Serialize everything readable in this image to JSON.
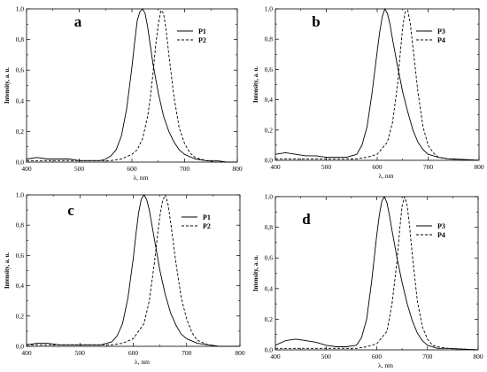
{
  "chart_data": [
    {
      "panel": "a",
      "type": "line",
      "xlabel": "λ, nm",
      "ylabel": "Intensity, a. u.",
      "xlim": [
        400,
        800
      ],
      "ylim": [
        0,
        1.0
      ],
      "xticks": [
        "400",
        "500",
        "600",
        "700",
        "800"
      ],
      "yticks": [
        "0,0",
        "0,2",
        "0,4",
        "0,6",
        "0,8",
        "1,0"
      ],
      "legend_position": "top-right",
      "grid": false,
      "series": [
        {
          "name": "P1",
          "style": "solid",
          "x": [
            400,
            420,
            440,
            460,
            480,
            500,
            520,
            540,
            550,
            560,
            570,
            580,
            590,
            600,
            605,
            610,
            615,
            620,
            625,
            630,
            635,
            640,
            650,
            660,
            670,
            680,
            690,
            700,
            720,
            740,
            760,
            780,
            800
          ],
          "y": [
            0.02,
            0.03,
            0.02,
            0.02,
            0.02,
            0.01,
            0.01,
            0.01,
            0.02,
            0.04,
            0.08,
            0.17,
            0.35,
            0.62,
            0.78,
            0.92,
            0.98,
            1.0,
            0.97,
            0.88,
            0.76,
            0.64,
            0.45,
            0.3,
            0.2,
            0.13,
            0.08,
            0.05,
            0.02,
            0.01,
            0.01,
            0.0,
            0.0
          ]
        },
        {
          "name": "P2",
          "style": "dashed",
          "x": [
            400,
            500,
            560,
            580,
            600,
            610,
            620,
            630,
            635,
            640,
            645,
            650,
            655,
            660,
            665,
            670,
            680,
            690,
            700,
            710,
            720,
            740,
            760,
            800
          ],
          "y": [
            0.01,
            0.01,
            0.01,
            0.02,
            0.05,
            0.08,
            0.15,
            0.3,
            0.42,
            0.58,
            0.76,
            0.9,
            0.99,
            0.97,
            0.86,
            0.7,
            0.42,
            0.22,
            0.12,
            0.06,
            0.03,
            0.01,
            0.0,
            0.0
          ]
        }
      ]
    },
    {
      "panel": "b",
      "type": "line",
      "xlabel": "λ, nm",
      "ylabel": "Intensity, a. u.",
      "xlim": [
        400,
        800
      ],
      "ylim": [
        0,
        1.0
      ],
      "xticks": [
        "400",
        "500",
        "600",
        "700",
        "800"
      ],
      "yticks": [
        "0,0",
        "0,2",
        "0,4",
        "0,6",
        "0,8",
        "1,0"
      ],
      "legend_position": "top-right",
      "grid": false,
      "series": [
        {
          "name": "P3",
          "style": "solid",
          "x": [
            400,
            420,
            440,
            460,
            480,
            500,
            520,
            540,
            560,
            570,
            580,
            590,
            600,
            605,
            610,
            615,
            620,
            625,
            630,
            640,
            650,
            660,
            670,
            680,
            690,
            700,
            720,
            740,
            800
          ],
          "y": [
            0.04,
            0.05,
            0.04,
            0.03,
            0.03,
            0.02,
            0.02,
            0.02,
            0.04,
            0.1,
            0.22,
            0.45,
            0.72,
            0.85,
            0.95,
            1.0,
            0.97,
            0.9,
            0.8,
            0.62,
            0.45,
            0.32,
            0.2,
            0.12,
            0.07,
            0.04,
            0.02,
            0.01,
            0.0
          ]
        },
        {
          "name": "P4",
          "style": "dashed",
          "x": [
            400,
            500,
            560,
            580,
            600,
            620,
            630,
            640,
            645,
            650,
            655,
            660,
            665,
            670,
            680,
            690,
            700,
            710,
            720,
            740,
            800
          ],
          "y": [
            0.01,
            0.01,
            0.01,
            0.02,
            0.04,
            0.12,
            0.25,
            0.5,
            0.7,
            0.88,
            0.98,
            0.99,
            0.9,
            0.75,
            0.45,
            0.22,
            0.1,
            0.05,
            0.02,
            0.01,
            0.0
          ]
        }
      ]
    },
    {
      "panel": "c",
      "type": "line",
      "xlabel": "λ, nm",
      "ylabel": "Intensity, a. u.",
      "xlim": [
        400,
        800
      ],
      "ylim": [
        0,
        1.0
      ],
      "xticks": [
        "400",
        "500",
        "600",
        "700",
        "800"
      ],
      "yticks": [
        "0,0",
        "0,2",
        "0,4",
        "0,6",
        "0,8",
        "1,0"
      ],
      "legend_position": "top-right",
      "grid": false,
      "series": [
        {
          "name": "P1",
          "style": "solid",
          "x": [
            400,
            420,
            440,
            460,
            480,
            500,
            520,
            540,
            560,
            570,
            580,
            590,
            600,
            605,
            610,
            615,
            620,
            625,
            630,
            640,
            650,
            660,
            670,
            680,
            690,
            700,
            720,
            740,
            760,
            800
          ],
          "y": [
            0.01,
            0.02,
            0.02,
            0.01,
            0.01,
            0.01,
            0.01,
            0.01,
            0.03,
            0.07,
            0.15,
            0.32,
            0.58,
            0.74,
            0.88,
            0.97,
            1.0,
            0.97,
            0.9,
            0.7,
            0.5,
            0.34,
            0.22,
            0.14,
            0.08,
            0.05,
            0.02,
            0.01,
            0.0,
            0.0
          ]
        },
        {
          "name": "P2",
          "style": "dashed",
          "x": [
            400,
            500,
            560,
            580,
            600,
            620,
            630,
            640,
            645,
            650,
            655,
            660,
            665,
            670,
            680,
            690,
            700,
            710,
            720,
            740,
            760,
            800
          ],
          "y": [
            0.01,
            0.01,
            0.01,
            0.02,
            0.05,
            0.15,
            0.3,
            0.56,
            0.72,
            0.86,
            0.96,
            1.0,
            0.94,
            0.82,
            0.55,
            0.32,
            0.18,
            0.09,
            0.04,
            0.01,
            0.0,
            0.0
          ]
        }
      ]
    },
    {
      "panel": "d",
      "type": "line",
      "xlabel": "λ, nm",
      "ylabel": "Intensity, a. u.",
      "xlim": [
        400,
        800
      ],
      "ylim": [
        0,
        1.0
      ],
      "xticks": [
        "400",
        "500",
        "600",
        "700",
        "800"
      ],
      "yticks": [
        "0,0",
        "0,2",
        "0,4",
        "0,6",
        "0,8",
        "1,0"
      ],
      "legend_position": "top-right",
      "grid": false,
      "series": [
        {
          "name": "P3",
          "style": "solid",
          "x": [
            400,
            420,
            440,
            460,
            480,
            500,
            520,
            540,
            560,
            570,
            580,
            590,
            600,
            605,
            610,
            615,
            620,
            625,
            630,
            640,
            650,
            660,
            670,
            680,
            690,
            700,
            720,
            740,
            800
          ],
          "y": [
            0.03,
            0.06,
            0.07,
            0.06,
            0.05,
            0.03,
            0.02,
            0.02,
            0.03,
            0.08,
            0.2,
            0.45,
            0.75,
            0.88,
            0.97,
            1.0,
            0.96,
            0.88,
            0.78,
            0.6,
            0.44,
            0.3,
            0.19,
            0.11,
            0.06,
            0.03,
            0.01,
            0.01,
            0.0
          ]
        },
        {
          "name": "P4",
          "style": "dashed",
          "x": [
            400,
            500,
            560,
            580,
            600,
            620,
            630,
            640,
            645,
            650,
            655,
            660,
            665,
            670,
            680,
            690,
            700,
            710,
            720,
            740,
            800
          ],
          "y": [
            0.01,
            0.01,
            0.01,
            0.02,
            0.04,
            0.12,
            0.3,
            0.58,
            0.78,
            0.94,
            1.0,
            0.94,
            0.8,
            0.62,
            0.32,
            0.15,
            0.07,
            0.03,
            0.02,
            0.01,
            0.0
          ]
        }
      ]
    }
  ]
}
